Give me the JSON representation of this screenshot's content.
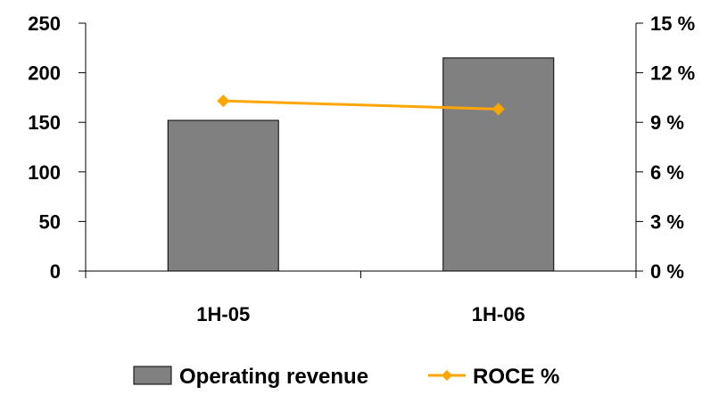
{
  "chart_data": {
    "type": "bar",
    "categories": [
      "1H-05",
      "1H-06"
    ],
    "series": [
      {
        "name": "Operating revenue",
        "type": "bar",
        "axis": "left",
        "values": [
          152,
          215
        ],
        "color": "#808080"
      },
      {
        "name": "ROCE %",
        "type": "line",
        "axis": "right",
        "values": [
          10.3,
          9.8
        ],
        "color": "#FFA500",
        "marker": "diamond"
      }
    ],
    "left_axis": {
      "ylim": [
        0,
        250
      ],
      "ticks": [
        "0",
        "50",
        "100",
        "150",
        "200",
        "250"
      ]
    },
    "right_axis": {
      "ylim": [
        0,
        15
      ],
      "ticks": [
        "0 %",
        "3 %",
        "6 %",
        "9 %",
        "12 %",
        "15 %"
      ]
    },
    "grid": false,
    "legend": {
      "placement": "bottom",
      "entries": [
        "Operating revenue",
        "ROCE %"
      ]
    }
  }
}
